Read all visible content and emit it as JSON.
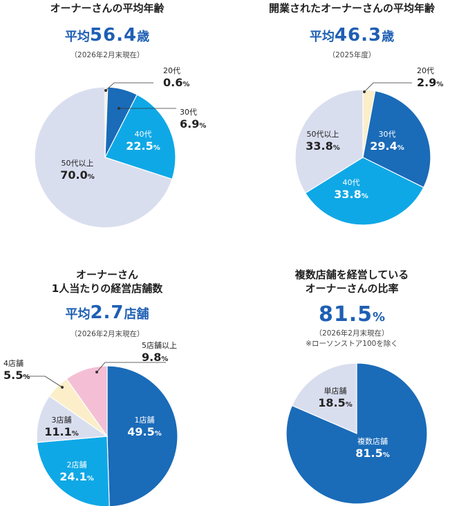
{
  "chart_data": [
    {
      "type": "pie",
      "title": "オーナーさんの平均年齢",
      "headline": {
        "prefix": "平均",
        "value": "56.4",
        "suffix": "歳"
      },
      "note": "（2026年2月末現在）",
      "series": [
        {
          "label": "20代",
          "value": 0.6,
          "color": "#fbeec9"
        },
        {
          "label": "30代",
          "value": 6.9,
          "color": "#1a6bb8"
        },
        {
          "label": "40代",
          "value": 22.5,
          "color": "#0fa8e6"
        },
        {
          "label": "50代以上",
          "value": 70.0,
          "color": "#d9deef"
        }
      ]
    },
    {
      "type": "pie",
      "title": "開業されたオーナーさんの平均年齢",
      "headline": {
        "prefix": "平均",
        "value": "46.3",
        "suffix": "歳"
      },
      "note": "（2025年度）",
      "series": [
        {
          "label": "20代",
          "value": 2.9,
          "color": "#fbeec9"
        },
        {
          "label": "30代",
          "value": 29.4,
          "color": "#1a6bb8"
        },
        {
          "label": "40代",
          "value": 33.8,
          "color": "#0fa8e6"
        },
        {
          "label": "50代以上",
          "value": 33.8,
          "color": "#d9deef"
        }
      ]
    },
    {
      "type": "pie",
      "title": "オーナーさん\n1人当たりの経営店舗数",
      "headline": {
        "prefix": "平均",
        "value": "2.7",
        "suffix": "店舗"
      },
      "note": "（2026年2月末現在）",
      "series": [
        {
          "label": "1店舗",
          "value": 49.5,
          "color": "#1a6bb8"
        },
        {
          "label": "2店舗",
          "value": 24.1,
          "color": "#0fa8e6"
        },
        {
          "label": "3店舗",
          "value": 11.1,
          "color": "#d9deef"
        },
        {
          "label": "4店舗",
          "value": 5.5,
          "color": "#fbeec9"
        },
        {
          "label": "5店舗以上",
          "value": 9.8,
          "color": "#f4bfd4"
        }
      ]
    },
    {
      "type": "pie",
      "title": "複数店舗を経営している\nオーナーさんの比率",
      "headline": {
        "prefix": "",
        "value": "81.5",
        "suffix": "%"
      },
      "note": "（2026年2月末現在）\n※ローソンストア100を除く",
      "series": [
        {
          "label": "複数店舗",
          "value": 81.5,
          "color": "#1a6bb8"
        },
        {
          "label": "単店舗",
          "value": 18.5,
          "color": "#d9deef"
        }
      ]
    }
  ]
}
